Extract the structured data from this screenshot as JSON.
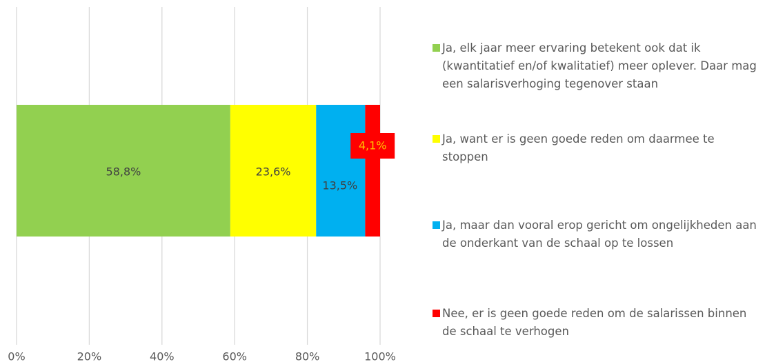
{
  "chart_data": {
    "type": "stacked_barh",
    "xlim": [
      0,
      100
    ],
    "xticks": [
      {
        "value": 0,
        "label": "0%"
      },
      {
        "value": 20,
        "label": "20%"
      },
      {
        "value": 40,
        "label": "40%"
      },
      {
        "value": 60,
        "label": "60%"
      },
      {
        "value": 80,
        "label": "80%"
      },
      {
        "value": 100,
        "label": "100%"
      }
    ],
    "grid": true,
    "legend": "right",
    "series": [
      {
        "name": "Ja, elk jaar meer ervaring betekent ook dat ik (kwantitatief en/of kwalitatief) meer oplever. Daar mag een salarisverhoging tegenover staan",
        "color": "#92d050",
        "values": [
          58.8
        ],
        "value_labels": [
          "58,8%"
        ]
      },
      {
        "name": "Ja, want er is geen goede reden om daarmee te stoppen",
        "color": "#ffff00",
        "values": [
          23.6
        ],
        "value_labels": [
          "23,6%"
        ]
      },
      {
        "name": "Ja, maar dan vooral erop gericht om ongelijkheden aan de onderkant van de schaal op te lossen",
        "color": "#00b0f0",
        "values": [
          13.5
        ],
        "value_labels": [
          "13,5%"
        ]
      },
      {
        "name": "Nee, er is geen goede reden om de salarissen binnen de schaal te verhogen",
        "color": "#ff0000",
        "values": [
          4.1
        ],
        "value_labels": [
          "4,1%"
        ]
      }
    ]
  }
}
